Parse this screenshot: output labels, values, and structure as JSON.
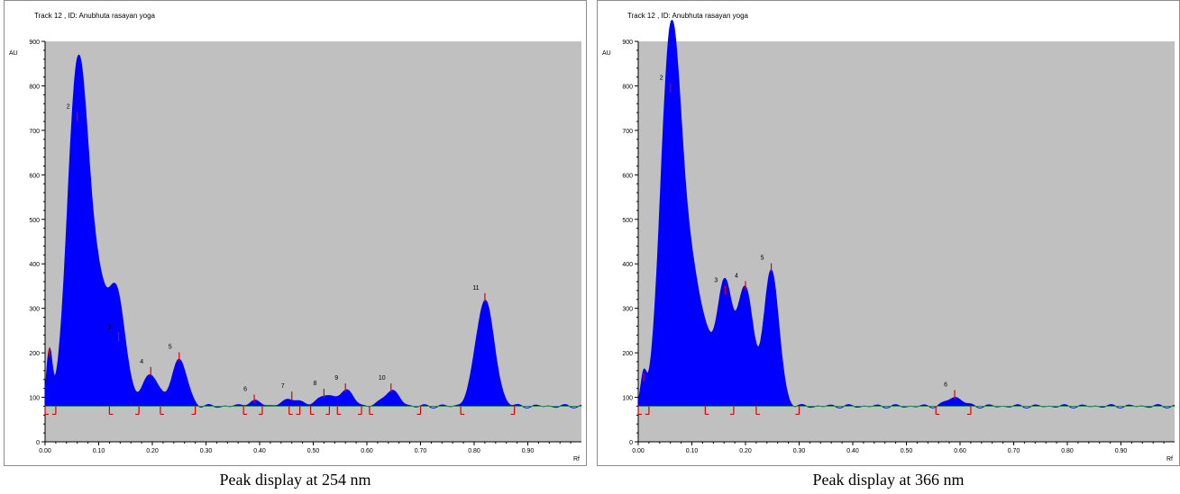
{
  "chart_data": [
    {
      "type": "area",
      "title": "Track  12 , ID: Anubhuta rasayan yoga",
      "ylabel": "AU",
      "xlabel": "Rf",
      "xlim": [
        0.0,
        1.0
      ],
      "ylim": [
        0,
        900
      ],
      "baseline": 80,
      "xticks": [
        "0.00",
        "0.10",
        "0.20",
        "0.30",
        "0.40",
        "0.50",
        "0.60",
        "0.70",
        "0.80",
        "0.90"
      ],
      "yticks": [
        "0",
        "100",
        "200",
        "300",
        "400",
        "500",
        "600",
        "700",
        "800",
        "900"
      ],
      "fill_color": "#0000ff",
      "plot_bg": "#c0c0c0",
      "baseline_color": "#2e8b57",
      "marker_color": "#dd0000",
      "peaks": [
        {
          "label": "",
          "rf": 0.008,
          "height": 195
        },
        {
          "label": "2",
          "rf": 0.06,
          "height": 725
        },
        {
          "label": "3",
          "rf": 0.137,
          "height": 230
        },
        {
          "label": "4",
          "rf": 0.197,
          "height": 152
        },
        {
          "label": "5",
          "rf": 0.25,
          "height": 185
        },
        {
          "label": "6",
          "rf": 0.39,
          "height": 90
        },
        {
          "label": "7",
          "rf": 0.46,
          "height": 97
        },
        {
          "label": "8",
          "rf": 0.52,
          "height": 103
        },
        {
          "label": "9",
          "rf": 0.56,
          "height": 115
        },
        {
          "label": "10",
          "rf": 0.645,
          "height": 115
        },
        {
          "label": "11",
          "rf": 0.82,
          "height": 318
        }
      ],
      "bounds": [
        0.0,
        0.02,
        0.12,
        0.175,
        0.215,
        0.28,
        0.37,
        0.405,
        0.455,
        0.475,
        0.495,
        0.53,
        0.545,
        0.59,
        0.605,
        0.7,
        0.775,
        0.875
      ]
    },
    {
      "type": "area",
      "title": "Track  12 , ID: Anubhuta rasayan yoga",
      "ylabel": "AU",
      "xlabel": "Rf",
      "xlim": [
        0.0,
        1.0
      ],
      "ylim": [
        0,
        900
      ],
      "baseline": 80,
      "xticks": [
        "0.00",
        "0.10",
        "0.20",
        "0.30",
        "0.40",
        "0.50",
        "0.60",
        "0.70",
        "0.80",
        "0.90"
      ],
      "yticks": [
        "0",
        "100",
        "200",
        "300",
        "400",
        "500",
        "600",
        "700",
        "800",
        "900"
      ],
      "fill_color": "#0000ff",
      "plot_bg": "#c0c0c0",
      "baseline_color": "#2e8b57",
      "marker_color": "#dd0000",
      "peaks": [
        {
          "label": "",
          "rf": 0.01,
          "height": 140
        },
        {
          "label": "2",
          "rf": 0.06,
          "height": 790
        },
        {
          "label": "3",
          "rf": 0.162,
          "height": 335
        },
        {
          "label": "4",
          "rf": 0.2,
          "height": 345
        },
        {
          "label": "5",
          "rf": 0.248,
          "height": 385
        },
        {
          "label": "6",
          "rf": 0.59,
          "height": 100
        }
      ],
      "bounds": [
        0.0,
        0.02,
        0.125,
        0.178,
        0.22,
        0.3,
        0.555,
        0.62
      ]
    }
  ],
  "captions": [
    "Peak display at 254 nm",
    "Peak display at 366 nm"
  ]
}
